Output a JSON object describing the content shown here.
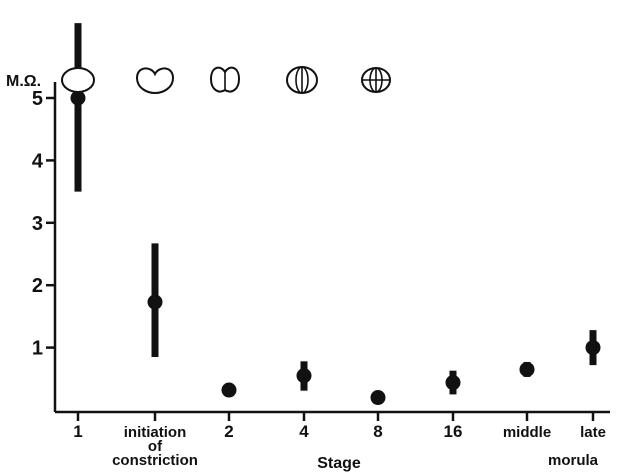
{
  "chart_data": {
    "type": "scatter",
    "title": "",
    "xlabel": "Stage",
    "ylabel": "M.Ω.",
    "ylim": [
      0,
      5.6
    ],
    "y_ticks": [
      1,
      2,
      3,
      4,
      5
    ],
    "grid": false,
    "legend": "none",
    "categories": [
      {
        "lines": [
          "1"
        ]
      },
      {
        "lines": [
          "initiation",
          "of",
          "constriction"
        ]
      },
      {
        "lines": [
          "2"
        ]
      },
      {
        "lines": [
          "4"
        ]
      },
      {
        "lines": [
          "8"
        ]
      },
      {
        "lines": [
          "16"
        ]
      },
      {
        "lines": [
          "middle"
        ]
      },
      {
        "lines": [
          "late",
          "morula"
        ]
      }
    ],
    "series": [
      {
        "values": [
          5.0,
          1.73,
          0.32,
          0.55,
          0.2,
          0.44,
          0.65,
          1.0
        ],
        "error_low": [
          3.5,
          0.85,
          0.26,
          0.31,
          0.16,
          0.25,
          0.53,
          0.72
        ],
        "error_high": [
          6.2,
          2.67,
          0.38,
          0.78,
          0.24,
          0.63,
          0.77,
          1.28
        ]
      }
    ],
    "stage_icons": [
      "one-cell-icon",
      "constricted-egg-icon",
      "two-cell-icon",
      "four-cell-icon",
      "eight-cell-icon"
    ],
    "colors": {
      "ink": "#111111",
      "background": "#ffffff"
    }
  }
}
